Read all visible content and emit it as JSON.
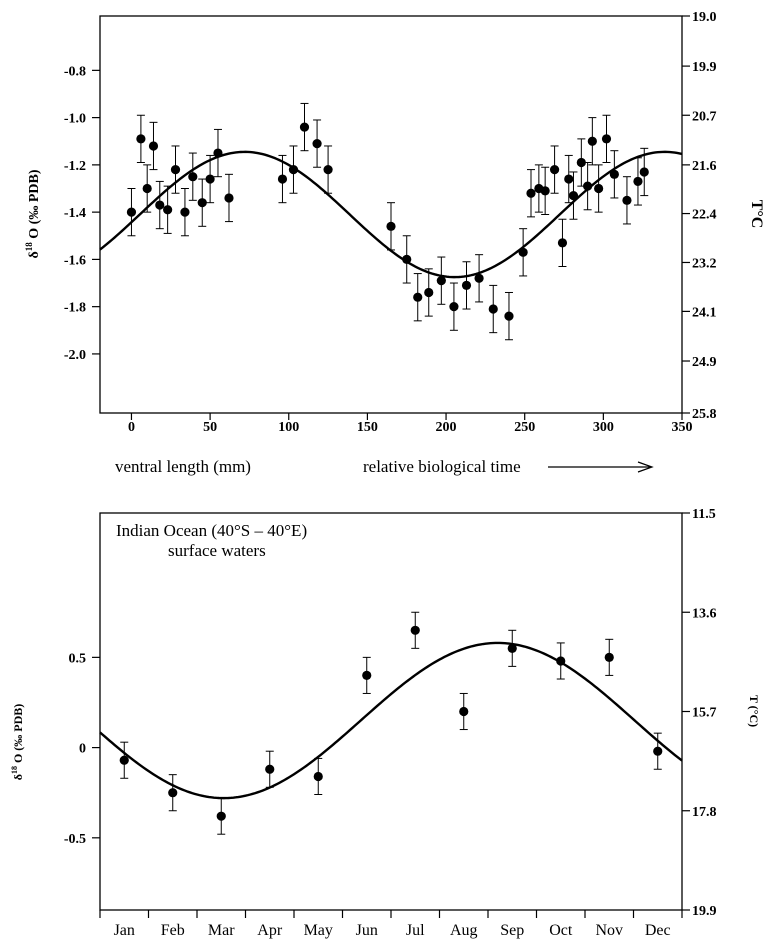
{
  "chart_data": [
    {
      "type": "scatter",
      "panel": "top",
      "xlabel": "ventral length (mm)",
      "xlabel2": "relative biological time",
      "ylabel_prefix": "δ",
      "ylabel_sup": "18",
      "ylabel_rest": " O (‰ PDB)",
      "y2label": "T°C",
      "xlim": [
        -20,
        350
      ],
      "ylim": [
        -2.25,
        -0.57
      ],
      "y_inverted": true,
      "x_ticks": [
        0,
        50,
        100,
        150,
        200,
        250,
        300,
        350
      ],
      "x_tick_labels": [
        "0",
        "50",
        "100",
        "150",
        "200",
        "250",
        "300",
        "350"
      ],
      "y_ticks": [
        -0.8,
        -1.0,
        -1.2,
        -1.4,
        -1.6,
        -1.8,
        -2.0
      ],
      "y_tick_labels": [
        "-0.8",
        "-1.0",
        "-1.2",
        "-1.4",
        "-1.6",
        "-1.8",
        "-2.0"
      ],
      "y2_ticks": [
        -0.57,
        -0.782,
        -0.99,
        -1.2,
        -1.406,
        -1.613,
        -1.82,
        -2.03,
        -2.25
      ],
      "y2_tick_labels": [
        "19.0",
        "19.9",
        "20.7",
        "21.6",
        "22.4",
        "23.2",
        "24.1",
        "24.9",
        "25.8"
      ],
      "points": [
        {
          "x": 0,
          "y": -1.4,
          "err": 0.1
        },
        {
          "x": 6,
          "y": -1.09,
          "err": 0.1
        },
        {
          "x": 10,
          "y": -1.3,
          "err": 0.1
        },
        {
          "x": 14,
          "y": -1.12,
          "err": 0.1
        },
        {
          "x": 18,
          "y": -1.37,
          "err": 0.1
        },
        {
          "x": 23,
          "y": -1.39,
          "err": 0.1
        },
        {
          "x": 28,
          "y": -1.22,
          "err": 0.1
        },
        {
          "x": 34,
          "y": -1.4,
          "err": 0.1
        },
        {
          "x": 39,
          "y": -1.25,
          "err": 0.1
        },
        {
          "x": 45,
          "y": -1.36,
          "err": 0.1
        },
        {
          "x": 50,
          "y": -1.26,
          "err": 0.1
        },
        {
          "x": 55,
          "y": -1.15,
          "err": 0.1
        },
        {
          "x": 62,
          "y": -1.34,
          "err": 0.1
        },
        {
          "x": 96,
          "y": -1.26,
          "err": 0.1
        },
        {
          "x": 103,
          "y": -1.22,
          "err": 0.1
        },
        {
          "x": 110,
          "y": -1.04,
          "err": 0.1
        },
        {
          "x": 118,
          "y": -1.11,
          "err": 0.1
        },
        {
          "x": 125,
          "y": -1.22,
          "err": 0.1
        },
        {
          "x": 165,
          "y": -1.46,
          "err": 0.1
        },
        {
          "x": 175,
          "y": -1.6,
          "err": 0.1
        },
        {
          "x": 182,
          "y": -1.76,
          "err": 0.1
        },
        {
          "x": 189,
          "y": -1.74,
          "err": 0.1
        },
        {
          "x": 197,
          "y": -1.69,
          "err": 0.1
        },
        {
          "x": 205,
          "y": -1.8,
          "err": 0.1
        },
        {
          "x": 213,
          "y": -1.71,
          "err": 0.1
        },
        {
          "x": 221,
          "y": -1.68,
          "err": 0.1
        },
        {
          "x": 230,
          "y": -1.81,
          "err": 0.1
        },
        {
          "x": 240,
          "y": -1.84,
          "err": 0.1
        },
        {
          "x": 249,
          "y": -1.57,
          "err": 0.1
        },
        {
          "x": 254,
          "y": -1.32,
          "err": 0.1
        },
        {
          "x": 259,
          "y": -1.3,
          "err": 0.1
        },
        {
          "x": 263,
          "y": -1.31,
          "err": 0.1
        },
        {
          "x": 269,
          "y": -1.22,
          "err": 0.1
        },
        {
          "x": 274,
          "y": -1.53,
          "err": 0.1
        },
        {
          "x": 278,
          "y": -1.26,
          "err": 0.1
        },
        {
          "x": 281,
          "y": -1.33,
          "err": 0.1
        },
        {
          "x": 286,
          "y": -1.19,
          "err": 0.1
        },
        {
          "x": 290,
          "y": -1.29,
          "err": 0.1
        },
        {
          "x": 293,
          "y": -1.1,
          "err": 0.1
        },
        {
          "x": 297,
          "y": -1.3,
          "err": 0.1
        },
        {
          "x": 302,
          "y": -1.09,
          "err": 0.1
        },
        {
          "x": 307,
          "y": -1.24,
          "err": 0.1
        },
        {
          "x": 315,
          "y": -1.35,
          "err": 0.1
        },
        {
          "x": 322,
          "y": -1.27,
          "err": 0.1
        },
        {
          "x": 326,
          "y": -1.23,
          "err": 0.1
        }
      ],
      "curve": {
        "center": -1.41,
        "amplitude": 0.265,
        "peak_x": 72,
        "period": 267
      }
    },
    {
      "type": "scatter",
      "panel": "bottom",
      "annotation_line1": "Indian Ocean (40°S – 40°E)",
      "annotation_line2": "surface waters",
      "ylabel_prefix": "δ",
      "ylabel_sup": "18",
      "ylabel_rest": " O (‰ PDB)",
      "y2label": "T (°C)",
      "xlim": [
        0,
        12
      ],
      "ylim": [
        -0.9,
        1.3
      ],
      "categories": [
        "Jan",
        "Feb",
        "Mar",
        "Apr",
        "May",
        "Jun",
        "Jul",
        "Aug",
        "Sep",
        "Oct",
        "Nov",
        "Dec"
      ],
      "y_ticks": [
        0.5,
        0,
        -0.5
      ],
      "y_tick_labels": [
        "0.5",
        "0",
        "-0.5"
      ],
      "y2_ticks": [
        1.3,
        0.75,
        0.2,
        -0.35,
        -0.9
      ],
      "y2_tick_labels": [
        "11.5",
        "13.6",
        "15.7",
        "17.8",
        "19.9"
      ],
      "points": [
        {
          "x": 0.5,
          "y": -0.07,
          "err": 0.1
        },
        {
          "x": 1.5,
          "y": -0.25,
          "err": 0.1
        },
        {
          "x": 2.5,
          "y": -0.38,
          "err": 0.1
        },
        {
          "x": 3.5,
          "y": -0.12,
          "err": 0.1
        },
        {
          "x": 4.5,
          "y": -0.16,
          "err": 0.1
        },
        {
          "x": 5.5,
          "y": 0.4,
          "err": 0.1
        },
        {
          "x": 6.5,
          "y": 0.65,
          "err": 0.1
        },
        {
          "x": 7.5,
          "y": 0.2,
          "err": 0.1
        },
        {
          "x": 8.5,
          "y": 0.55,
          "err": 0.1
        },
        {
          "x": 9.5,
          "y": 0.48,
          "err": 0.1
        },
        {
          "x": 10.5,
          "y": 0.5,
          "err": 0.1
        },
        {
          "x": 11.5,
          "y": -0.02,
          "err": 0.1
        }
      ],
      "curve": {
        "center": 0.15,
        "amplitude": 0.43,
        "peak_x": 8.2,
        "period": 11.3
      }
    }
  ]
}
